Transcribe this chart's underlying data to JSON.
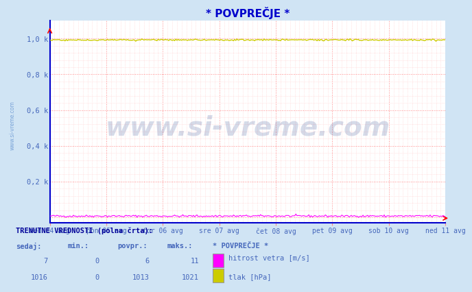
{
  "title": "* POVPREČJE *",
  "title_color": "#0000cc",
  "bg_color": "#d0e4f4",
  "plot_bg_color": "#ffffff",
  "grid_color_major": "#ff8888",
  "grid_color_minor": "#ffcccc",
  "border_color": "#0000cc",
  "x_labels": [
    "ned 04 avg",
    "pon 05 avg",
    "tor 06 avg",
    "sre 07 avg",
    "čet 08 avg",
    "pet 09 avg",
    "sob 10 avg",
    "ned 11 avg"
  ],
  "x_ticks_major": [
    0,
    12,
    24,
    36,
    48,
    60,
    72,
    84
  ],
  "x_max": 84,
  "y_ticks": [
    0.0,
    0.2,
    0.4,
    0.6,
    0.8,
    1.0
  ],
  "y_labels": [
    "",
    "0,2 k",
    "0,4 k",
    "0,6 k",
    "0,8 k",
    "1,0 k"
  ],
  "y_min": -0.03,
  "y_max": 1.1,
  "wind_color": "#ff00ff",
  "pressure_color": "#cccc00",
  "watermark_text": "www.si-vreme.com",
  "watermark_color": "#1a3a8a",
  "watermark_alpha": 0.18,
  "watermark_fontsize": 28,
  "sidewatermark_text": "www.si-vreme.com",
  "sidewatermark_color": "#5588cc",
  "bottom_label": "TRENUTNE VREDNOSTI (polna črta):",
  "col_headers": [
    "sedaj:",
    "min.:",
    "povpr.:",
    "maks.:",
    "* POVPREČJE *"
  ],
  "wind_row": [
    "7",
    "0",
    "6",
    "11"
  ],
  "pressure_row": [
    "1016",
    "0",
    "1013",
    "1021"
  ],
  "legend_wind_label": "hitrost vetra [m/s]",
  "legend_pressure_label": "tlak [hPa]",
  "legend_wind_color": "#ff00ff",
  "legend_pressure_color": "#cccc00",
  "text_color": "#4466bb",
  "header_color": "#000099"
}
